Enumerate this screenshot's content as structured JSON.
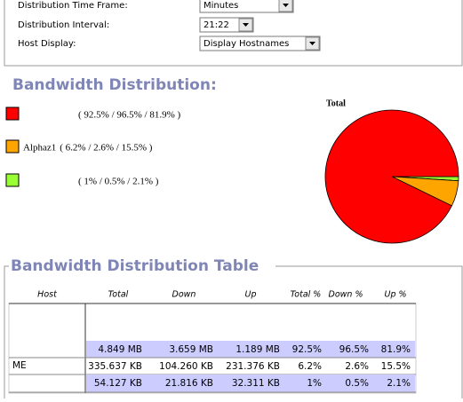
{
  "form": {
    "fields": [
      {
        "label": "Distribution Time Frame:",
        "value": "Minutes"
      },
      {
        "label": "Distribution Interval:",
        "value": "21:22"
      },
      {
        "label": "Host Display:",
        "value": "Display Hostnames"
      }
    ]
  },
  "distribution": {
    "title": "Bandwidth Distribution:",
    "legend": [
      {
        "text": "( 92.5% / 96.5% / 81.9% )"
      },
      {
        "name": "Alphaz1",
        "text": "( 6.2% / 2.6% / 15.5% )"
      },
      {
        "text": "( 1% / 0.5% / 2.1% )"
      }
    ]
  },
  "chart_data": {
    "type": "pie",
    "title": "Total",
    "values": [
      92.5,
      6.2,
      1
    ],
    "colors": [
      "#ff0000",
      "#ffa500",
      "#99ff33"
    ]
  },
  "table": {
    "title": "Bandwidth Distribution Table",
    "headers": [
      "Host",
      "Total",
      "Down",
      "Up",
      "Total %",
      "Down %",
      "Up %"
    ],
    "rows": [
      {
        "cells": [
          "4.849 MB",
          "3.659 MB",
          "1.189 MB",
          "92.5%",
          "96.5%",
          "81.9%"
        ]
      },
      {
        "host": "ME",
        "cells": [
          "335.637 KB",
          "104.260 KB",
          "231.376 KB",
          "6.2%",
          "2.6%",
          "15.5%"
        ]
      },
      {
        "cells": [
          "54.127 KB",
          "21.816 KB",
          "32.311 KB",
          "1%",
          "0.5%",
          "2.1%"
        ]
      }
    ]
  }
}
